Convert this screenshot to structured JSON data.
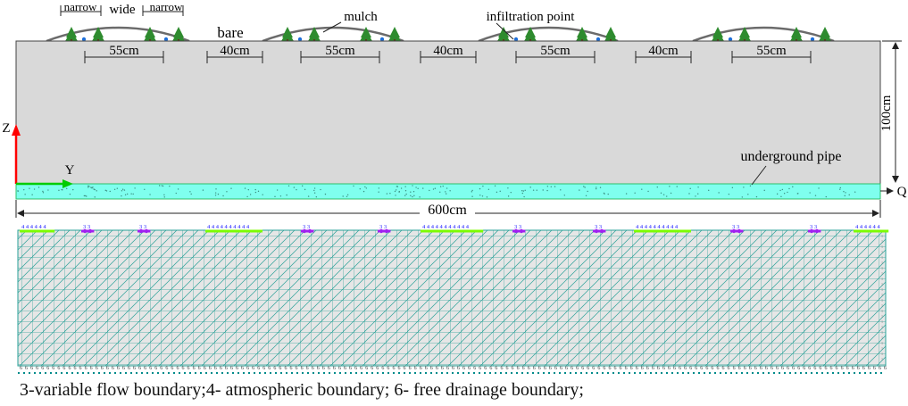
{
  "labels": {
    "narrow_left": "narrow",
    "wide": "wide",
    "narrow_right": "narrow",
    "bare": "bare",
    "mulch": "mulch",
    "infiltration_point": "infiltration point",
    "underground_pipe": "underground pipe",
    "axis_z": "Z",
    "axis_y": "Y",
    "outlet_q": "Q",
    "width_total": "600cm",
    "depth_total": "100cm"
  },
  "dimensions": {
    "ridge_width": "55cm",
    "gap_width": "40cm"
  },
  "mesh_markers": {
    "boundary_3": "3",
    "boundary_4": "4",
    "boundary_6": "6",
    "top_groups": [
      "4 4 4 4 4 4",
      "3 3",
      "3 3",
      "4 4 4 4 4 4 4 4 4 4",
      "3 3",
      "3 3",
      "4 4 4 4 4 4 4 4 4 4 4",
      "3 3",
      "3 3",
      "4 4 4 4 4 4 4 4 4 4",
      "3 3",
      "3 3",
      "4 4 4 4 4 4"
    ]
  },
  "caption": "3-variable flow boundary;4-  atmospheric boundary; 6-  free drainage boundary;",
  "colors": {
    "soil": "#d9d9d9",
    "pipe_layer": "#7fffee",
    "mesh_line": "#2aa198",
    "mesh_bg": "#e9e9e9",
    "axis_z": "#ff0000",
    "axis_y": "#00cc00",
    "ridge_arc": "#666666",
    "tree": "#2e8b2e",
    "emitter": "#1e6fd9",
    "boundary_4": "#7cfc00",
    "boundary_3": "#a020f0",
    "boundary_6": "#008b8b"
  }
}
